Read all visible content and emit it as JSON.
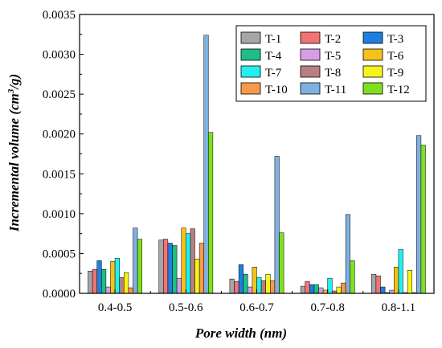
{
  "chart_data": {
    "type": "bar",
    "xlabel": "Pore width (nm)",
    "ylabel_main": "Incremental volume (cm",
    "ylabel_sup": "3",
    "ylabel_tail": "/g)",
    "categories": [
      "0.4-0.5",
      "0.5-0.6",
      "0.6-0.7",
      "0.7-0.8",
      "0.8-1.1"
    ],
    "ylim": [
      0,
      0.0035
    ],
    "yticks": [
      "0.0000",
      "0.0005",
      "0.0010",
      "0.0015",
      "0.0020",
      "0.0025",
      "0.0030",
      "0.0035"
    ],
    "legend_position": "top-right",
    "series": [
      {
        "name": "T-1",
        "color": "#a6a6a6",
        "values": [
          0.00028,
          0.00067,
          0.00018,
          9e-05,
          0.00024
        ]
      },
      {
        "name": "T-2",
        "color": "#f27373",
        "values": [
          0.0003,
          0.00068,
          0.00015,
          0.00015,
          0.00022
        ]
      },
      {
        "name": "T-3",
        "color": "#1f7fe0",
        "values": [
          0.00041,
          0.00063,
          0.00036,
          0.00011,
          8e-05
        ]
      },
      {
        "name": "T-4",
        "color": "#1dbf86",
        "values": [
          0.0003,
          0.0006,
          0.00024,
          0.00011,
          1e-05
        ]
      },
      {
        "name": "T-5",
        "color": "#d79ee6",
        "values": [
          8e-05,
          0.00019,
          8e-05,
          7e-05,
          4e-05
        ]
      },
      {
        "name": "T-6",
        "color": "#f5c11a",
        "values": [
          0.0004,
          0.00082,
          0.00033,
          4e-05,
          0.00033
        ]
      },
      {
        "name": "T-7",
        "color": "#22f0f0",
        "values": [
          0.00044,
          0.00075,
          0.0002,
          0.00019,
          0.00055
        ]
      },
      {
        "name": "T-8",
        "color": "#b87f7f",
        "values": [
          0.0002,
          0.00081,
          0.00016,
          3e-05,
          1e-05
        ]
      },
      {
        "name": "T-9",
        "color": "#f5f51a",
        "values": [
          0.00026,
          0.00043,
          0.00024,
          8e-05,
          0.00029
        ]
      },
      {
        "name": "T-10",
        "color": "#f59a4a",
        "values": [
          7e-05,
          0.00063,
          0.00016,
          0.00013,
          1e-05
        ]
      },
      {
        "name": "T-11",
        "color": "#7fb0e0",
        "values": [
          0.00082,
          0.00324,
          0.00172,
          0.00099,
          0.00198
        ]
      },
      {
        "name": "T-12",
        "color": "#7fe01f",
        "values": [
          0.00068,
          0.00202,
          0.00076,
          0.00041,
          0.00186
        ]
      }
    ]
  }
}
